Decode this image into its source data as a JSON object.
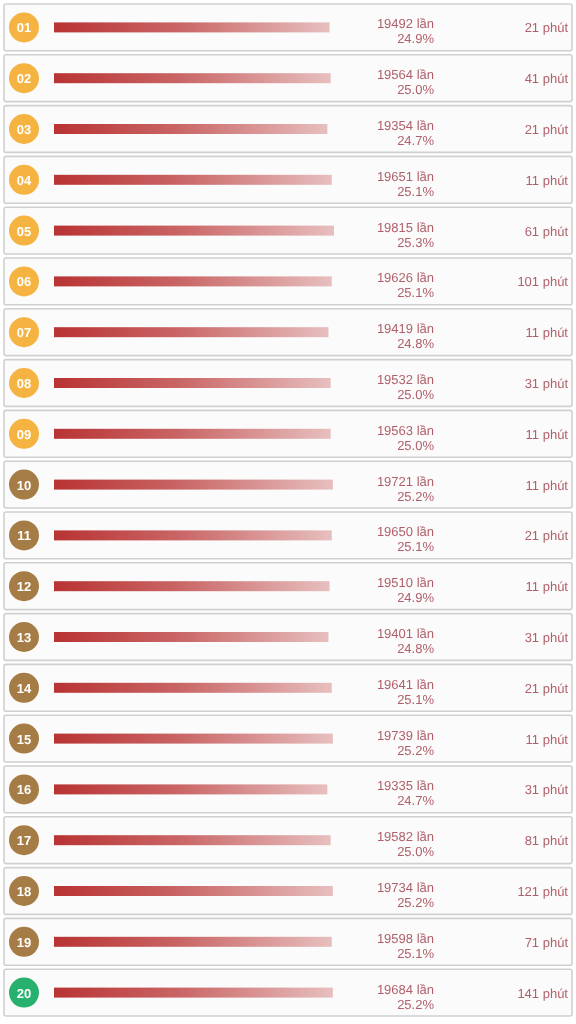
{
  "chart_data": {
    "type": "bar",
    "orientation": "horizontal",
    "color": "#b93333",
    "data_labels": true,
    "categories": [
      "01",
      "02",
      "03",
      "04",
      "05",
      "06",
      "07",
      "08",
      "09",
      "10",
      "11",
      "12",
      "13",
      "14",
      "15",
      "16",
      "17",
      "18",
      "19",
      "20"
    ],
    "values": [
      24.9,
      25.0,
      24.7,
      25.1,
      25.3,
      25.1,
      24.8,
      25.0,
      25.0,
      25.2,
      25.1,
      24.9,
      24.8,
      25.1,
      25.2,
      24.7,
      25.0,
      25.2,
      25.1,
      25.2
    ],
    "value_labels": [
      "24.9%",
      "25.0%",
      "24.7%",
      "25.1%",
      "25.3%",
      "25.1%",
      "24.8%",
      "25.0%",
      "25.0%",
      "25.2%",
      "25.1%",
      "24.9%",
      "24.8%",
      "25.1%",
      "25.2%",
      "24.7%",
      "25.0%",
      "25.2%",
      "25.1%",
      "25.2%"
    ],
    "annotations": [
      "19492 lần",
      "21 phút",
      "19564 lần",
      "41 phút",
      "19354 lần",
      "21 phút",
      "19651 lần",
      "11 phút",
      "19815 lần",
      "61 phút",
      "19626 lần",
      "101 phút",
      "19419 lần",
      "11 phút",
      "19532 lần",
      "31 phút",
      "19563 lần",
      "11 phút",
      "19721 lần",
      "11 phút",
      "19650 lần",
      "21 phút",
      "19510 lần",
      "11 phút",
      "19401 lần",
      "31 phút",
      "19641 lần",
      "21 phút",
      "19739 lần",
      "11 phút",
      "19335 lần",
      "31 phút",
      "19582 lần",
      "81 phút",
      "19734 lần",
      "121 phút",
      "19598 lần",
      "71 phút",
      "19684 lần",
      "141 phút"
    ]
  }
}
